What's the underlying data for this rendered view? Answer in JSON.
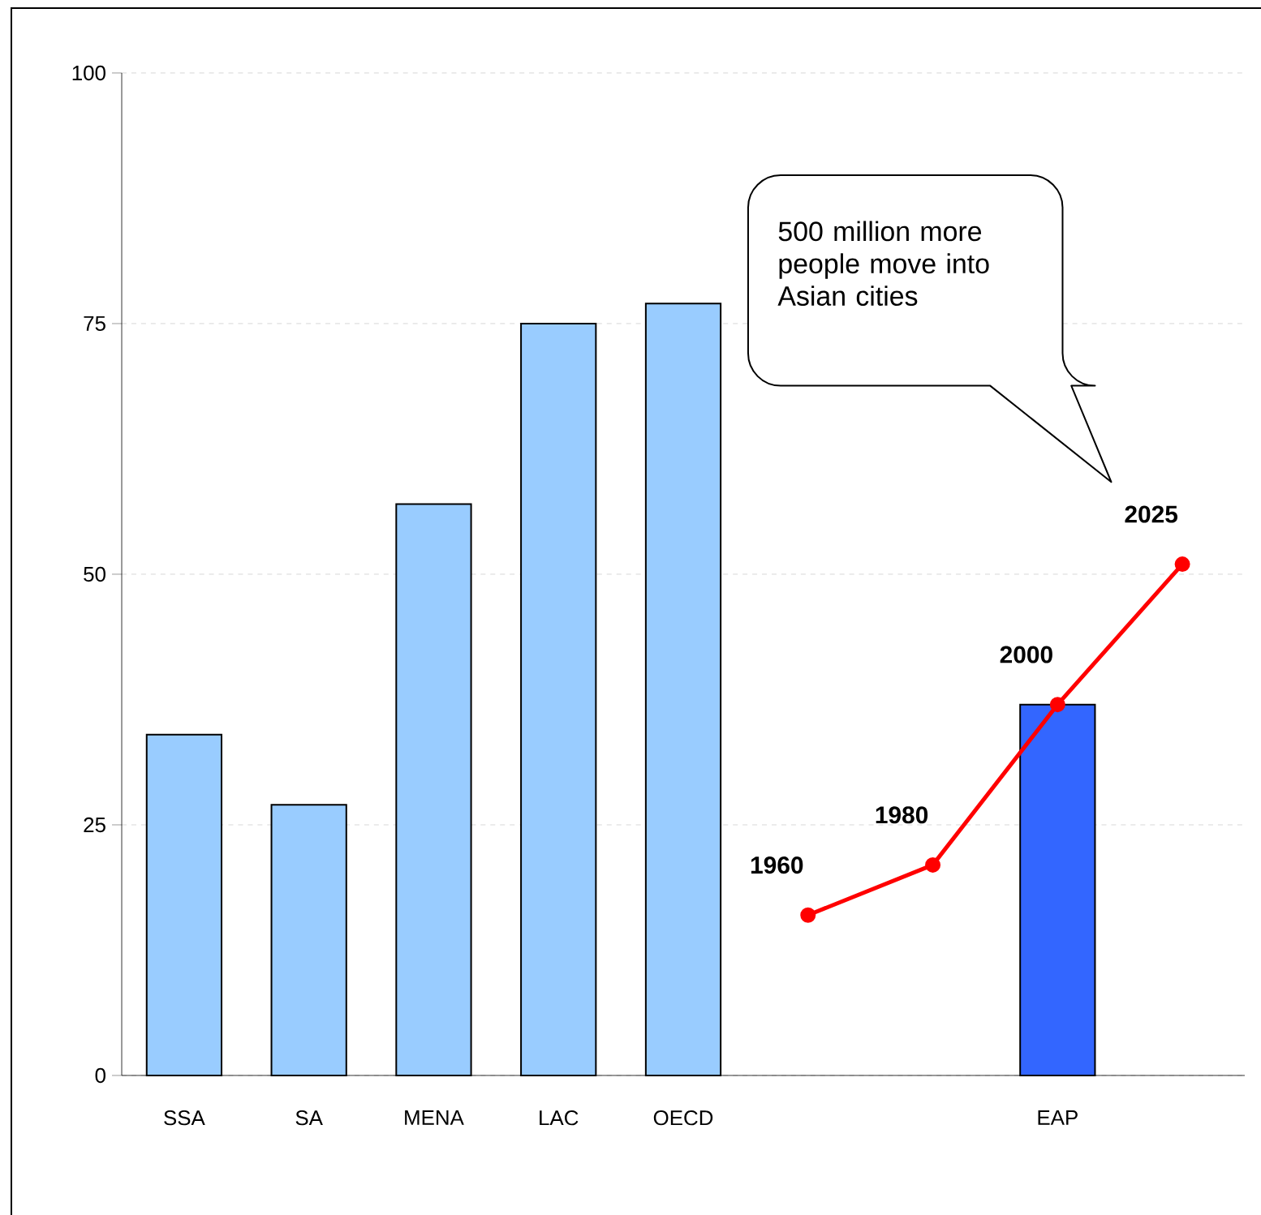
{
  "chart_data": {
    "type": "bar",
    "categories": [
      "SSA",
      "SA",
      "MENA",
      "LAC",
      "OECD",
      null,
      null,
      "EAP",
      null
    ],
    "series": [
      {
        "colors": [
          "#99ccff",
          "#99ccff",
          "#99ccff",
          "#99ccff",
          "#99ccff",
          "#99ccff",
          "#99ccff",
          "#3366ff",
          "#99ccff"
        ],
        "values": [
          34,
          27,
          57,
          75,
          77,
          null,
          null,
          37,
          null
        ]
      },
      {
        "type": "line",
        "color": "#ff0000",
        "marker": "circle",
        "values": [
          null,
          null,
          null,
          null,
          null,
          16,
          21,
          37,
          51
        ]
      }
    ],
    "ylim": [
      0,
      100
    ],
    "yticks": [
      0,
      25,
      50,
      75,
      100
    ],
    "grid": "y",
    "annotations": [
      "500 million more people move into Asian cities",
      "1960",
      "1980",
      "2000",
      "2025"
    ]
  }
}
